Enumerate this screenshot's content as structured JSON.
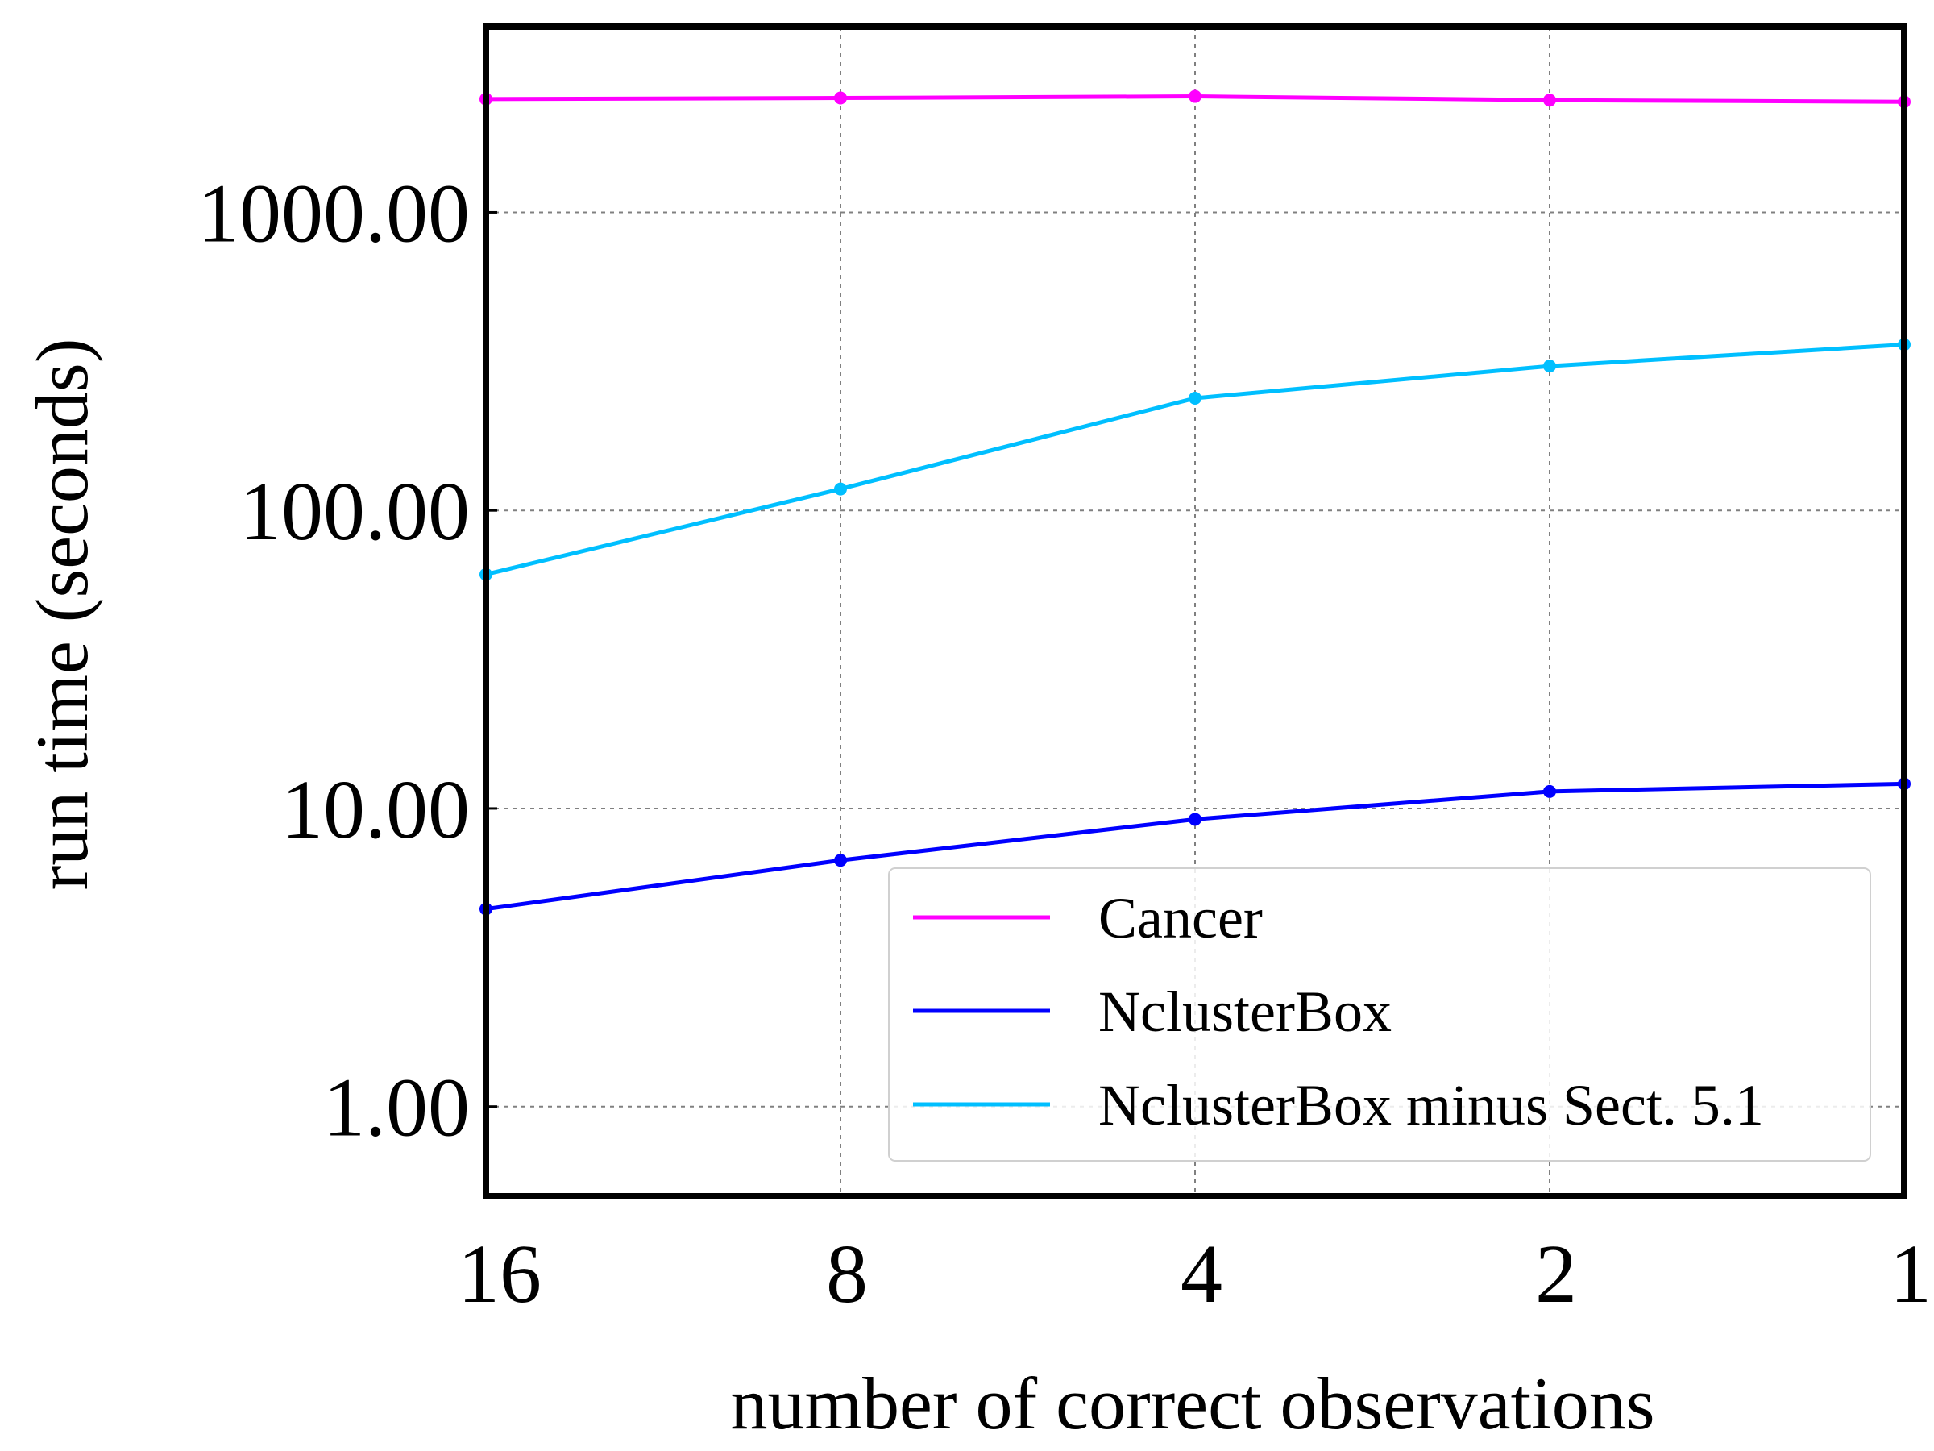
{
  "chart_data": {
    "type": "line",
    "title": "",
    "xlabel": "number of correct observations",
    "ylabel": "run time (seconds)",
    "x": [
      16,
      8,
      4,
      2,
      1
    ],
    "x_tick_labels": [
      "16",
      "8",
      "4",
      "2",
      "1"
    ],
    "x_scale": "log2",
    "x_reversed": true,
    "y_scale": "log10",
    "ylim": [
      0.5,
      4200
    ],
    "y_ticks": [
      1,
      10,
      100,
      1000
    ],
    "y_tick_labels": [
      "1.00",
      "10.00",
      "100.00",
      "1000.00"
    ],
    "grid": true,
    "legend_position": "lower-right",
    "series": [
      {
        "name": "Cancer",
        "color": "#ff00ff",
        "values": [
          2400,
          2420,
          2450,
          2380,
          2350
        ]
      },
      {
        "name": "NclusterBox",
        "color": "#0000ff",
        "values": [
          4.6,
          6.7,
          9.2,
          11.4,
          12.1
        ]
      },
      {
        "name": "NclusterBox minus Sect. 5.1",
        "color": "#00bfff",
        "values": [
          61,
          118,
          238,
          305,
          360
        ]
      }
    ]
  }
}
